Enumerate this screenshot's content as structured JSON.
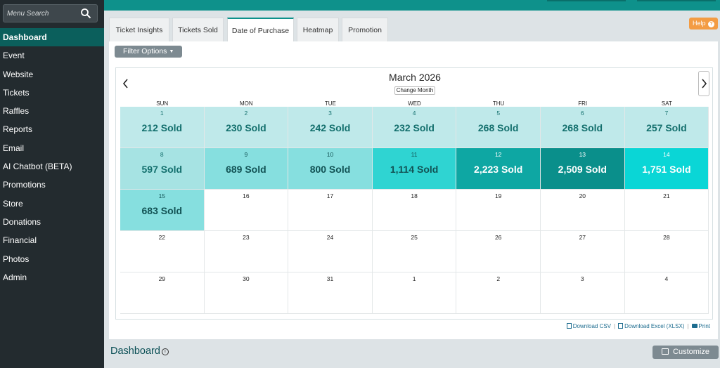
{
  "sidebar": {
    "search_placeholder": "Menu Search",
    "items": [
      {
        "label": "Dashboard",
        "active": true
      },
      {
        "label": "Event"
      },
      {
        "label": "Website"
      },
      {
        "label": "Tickets"
      },
      {
        "label": "Raffles"
      },
      {
        "label": "Reports"
      },
      {
        "label": "Email"
      },
      {
        "label": "AI Chatbot (BETA)"
      },
      {
        "label": "Promotions"
      },
      {
        "label": "Store"
      },
      {
        "label": "Donations"
      },
      {
        "label": "Financial"
      },
      {
        "label": "Photos"
      },
      {
        "label": "Admin"
      }
    ]
  },
  "help": {
    "label": "Help"
  },
  "tabs": [
    {
      "label": "Ticket Insights"
    },
    {
      "label": "Tickets Sold"
    },
    {
      "label": "Date of Purchase",
      "active": true
    },
    {
      "label": "Heatmap"
    },
    {
      "label": "Promotion"
    }
  ],
  "filter": {
    "label": "Filter Options"
  },
  "calendar": {
    "title": "March 2026",
    "change_month_label": "Change Month",
    "weekdays": [
      "SUN",
      "MON",
      "TUE",
      "WED",
      "THU",
      "FRI",
      "SAT"
    ],
    "weeks": [
      [
        {
          "day": "1",
          "sold": "212 Sold",
          "color": "#bfe9ea",
          "text_color": "#136f6d"
        },
        {
          "day": "2",
          "sold": "230 Sold",
          "color": "#bfe9ea",
          "text_color": "#136f6d"
        },
        {
          "day": "3",
          "sold": "242 Sold",
          "color": "#bfe9ea",
          "text_color": "#136f6d"
        },
        {
          "day": "4",
          "sold": "232 Sold",
          "color": "#bfe9ea",
          "text_color": "#136f6d"
        },
        {
          "day": "5",
          "sold": "268 Sold",
          "color": "#bfe9ea",
          "text_color": "#136f6d"
        },
        {
          "day": "6",
          "sold": "268 Sold",
          "color": "#bfe9ea",
          "text_color": "#136f6d"
        },
        {
          "day": "7",
          "sold": "257 Sold",
          "color": "#bfe9ea",
          "text_color": "#136f6d"
        }
      ],
      [
        {
          "day": "8",
          "sold": "597 Sold",
          "color": "#a6e3e3",
          "text_color": "#136f6d"
        },
        {
          "day": "9",
          "sold": "689 Sold",
          "color": "#86dfdf",
          "text_color": "#125254"
        },
        {
          "day": "10",
          "sold": "800 Sold",
          "color": "#86dfdf",
          "text_color": "#125254"
        },
        {
          "day": "11",
          "sold": "1,114 Sold",
          "color": "#2fd4d2",
          "text_color": "#125254"
        },
        {
          "day": "12",
          "sold": "2,223 Sold",
          "color": "#0ea7a3",
          "text_color": "#ffffff"
        },
        {
          "day": "13",
          "sold": "2,509 Sold",
          "color": "#0a8f8b",
          "text_color": "#ffffff"
        },
        {
          "day": "14",
          "sold": "1,751 Sold",
          "color": "#0ad6d6",
          "text_color": "#ffffff"
        }
      ],
      [
        {
          "day": "15",
          "sold": "683 Sold",
          "color": "#86dfdf",
          "text_color": "#125254"
        },
        {
          "day": "16",
          "sold": ""
        },
        {
          "day": "17",
          "sold": ""
        },
        {
          "day": "18",
          "sold": ""
        },
        {
          "day": "19",
          "sold": ""
        },
        {
          "day": "20",
          "sold": ""
        },
        {
          "day": "21",
          "sold": ""
        }
      ],
      [
        {
          "day": "22",
          "sold": ""
        },
        {
          "day": "23",
          "sold": ""
        },
        {
          "day": "24",
          "sold": ""
        },
        {
          "day": "25",
          "sold": ""
        },
        {
          "day": "26",
          "sold": ""
        },
        {
          "day": "27",
          "sold": ""
        },
        {
          "day": "28",
          "sold": ""
        }
      ],
      [
        {
          "day": "29",
          "sold": ""
        },
        {
          "day": "30",
          "sold": ""
        },
        {
          "day": "31",
          "sold": ""
        },
        {
          "day": "1",
          "sold": ""
        },
        {
          "day": "2",
          "sold": ""
        },
        {
          "day": "3",
          "sold": ""
        },
        {
          "day": "4",
          "sold": ""
        }
      ]
    ]
  },
  "downloads": {
    "csv": "Download CSV",
    "excel": "Download Excel (XLSX)",
    "print": "Print"
  },
  "dashboard": {
    "title": "Dashboard",
    "info": "i"
  },
  "customize": {
    "label": "Customize"
  }
}
